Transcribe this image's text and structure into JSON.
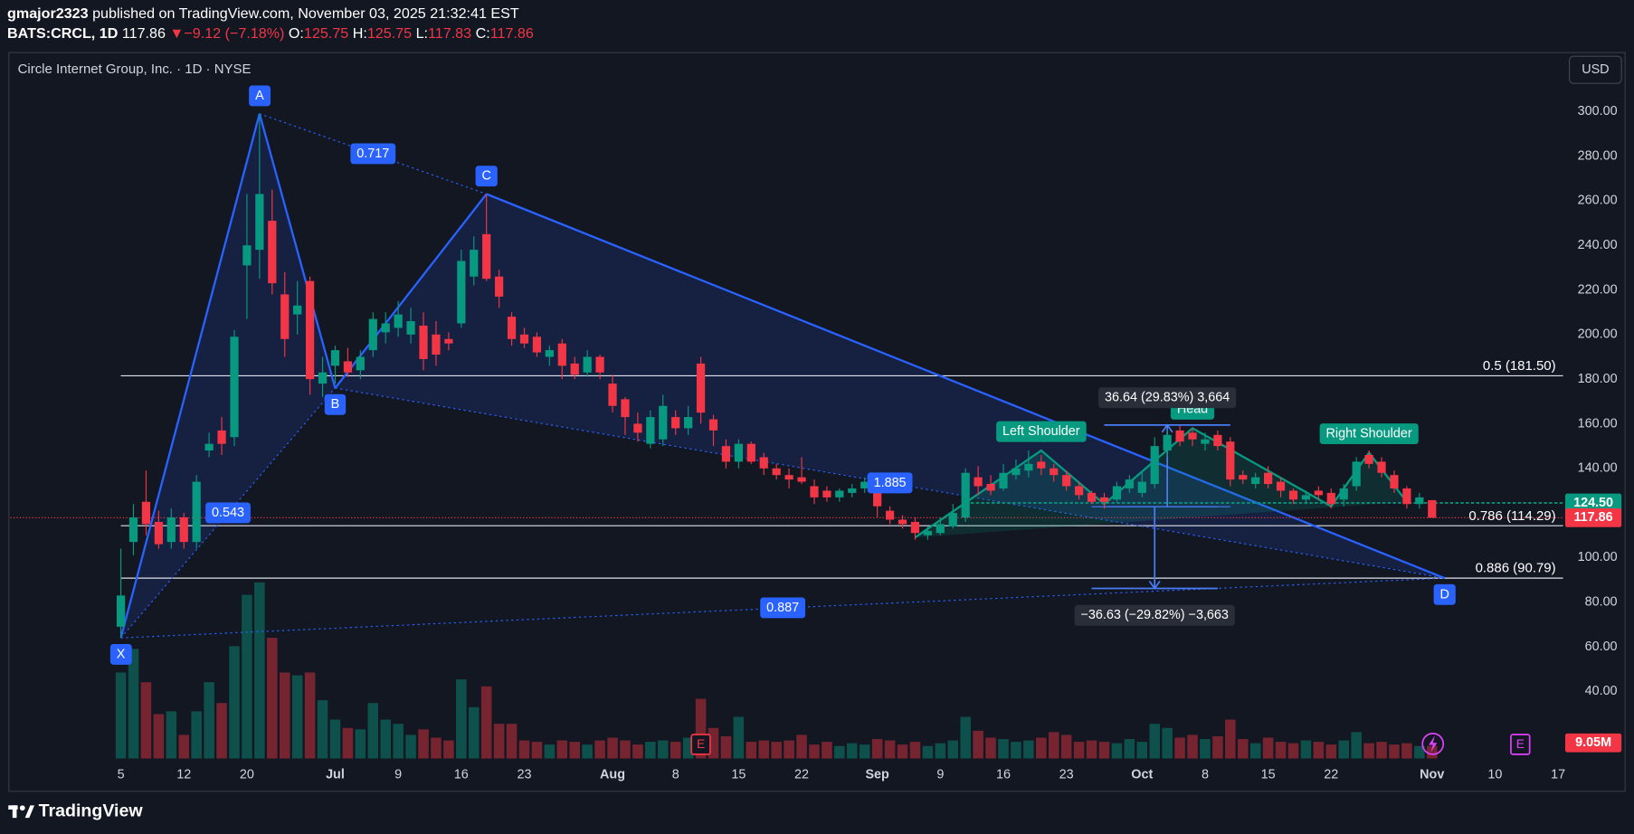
{
  "header": {
    "author": "gmajor2323",
    "published": "published on TradingView.com, November 03, 2025 21:32:41 EST",
    "symbol": "BATS:CRCL, 1D",
    "arrow": "▼",
    "change": "−9.12 (−7.18%)",
    "o": "O:",
    "h": "H:",
    "l": "L:",
    "c": "C:"
  },
  "footer": {
    "brand": "TradingView"
  },
  "chart_data": {
    "type": "candlestick",
    "title": "Circle Internet Group, Inc. · 1D · NYSE",
    "currency": "USD",
    "up_color": "#089981",
    "down_color": "#f23645",
    "xlim": [
      -8.76,
      114.4
    ],
    "xticks": [
      {
        "value": 0,
        "label": "5"
      },
      {
        "value": 5,
        "label": "12"
      },
      {
        "value": 10,
        "label": "20"
      },
      {
        "value": 17,
        "label": "Jul"
      },
      {
        "value": 22,
        "label": "9"
      },
      {
        "value": 27,
        "label": "16"
      },
      {
        "value": 32,
        "label": "23"
      },
      {
        "value": 39,
        "label": "Aug"
      },
      {
        "value": 44,
        "label": "8"
      },
      {
        "value": 49,
        "label": "15"
      },
      {
        "value": 54,
        "label": "22"
      },
      {
        "value": 60,
        "label": "Sep"
      },
      {
        "value": 65,
        "label": "9"
      },
      {
        "value": 70,
        "label": "16"
      },
      {
        "value": 75,
        "label": "23"
      },
      {
        "value": 81,
        "label": "Oct"
      },
      {
        "value": 86,
        "label": "8"
      },
      {
        "value": 91,
        "label": "15"
      },
      {
        "value": 96,
        "label": "22"
      },
      {
        "value": 104,
        "label": "Nov"
      },
      {
        "value": 109,
        "label": "10"
      },
      {
        "value": 114,
        "label": "17"
      }
    ],
    "ylim": [
      9.0,
      325.7
    ],
    "yticks": [
      {
        "value": 40,
        "label": "40.00"
      },
      {
        "value": 60,
        "label": "60.00"
      },
      {
        "value": 80,
        "label": "80.00"
      },
      {
        "value": 100,
        "label": "100.00"
      },
      {
        "value": 120,
        "label": "120.00"
      },
      {
        "value": 140,
        "label": "140.00"
      },
      {
        "value": 160,
        "label": "160.00"
      },
      {
        "value": 180,
        "label": "180.00"
      },
      {
        "value": 200,
        "label": "200.00"
      },
      {
        "value": 220,
        "label": "220.00"
      },
      {
        "value": 240,
        "label": "240.00"
      },
      {
        "value": 260,
        "label": "260.00"
      },
      {
        "value": 280,
        "label": "280.00"
      },
      {
        "value": 300,
        "label": "300.00"
      }
    ],
    "grid": false,
    "open": [
      69,
      107,
      125,
      116,
      107,
      118,
      107,
      148,
      157,
      154,
      231,
      238,
      251,
      218,
      209,
      224,
      178,
      186,
      188,
      184,
      193,
      201,
      203,
      200,
      204,
      200,
      198,
      205,
      226,
      245,
      226,
      208,
      200,
      199,
      190,
      196,
      187,
      183,
      190,
      178,
      171,
      160,
      151,
      153,
      163,
      158,
      187,
      162,
      150,
      143,
      151,
      145,
      140,
      137,
      136,
      132,
      130,
      127,
      129,
      131,
      132,
      121,
      117,
      116,
      110,
      111,
      114,
      118,
      136,
      133,
      131,
      137,
      139,
      143,
      140,
      137,
      132,
      129,
      127,
      126,
      131,
      129,
      133,
      148,
      157,
      156,
      151,
      155,
      152,
      137,
      133,
      138,
      134,
      130,
      126,
      130,
      129,
      126,
      132,
      146,
      143,
      137,
      131,
      124,
      125.75
    ],
    "high": [
      104,
      124,
      139,
      121,
      122,
      120,
      137,
      156,
      163,
      202,
      263,
      299,
      265,
      228,
      224,
      226,
      190,
      195,
      194,
      193,
      210,
      210,
      215,
      212,
      210,
      206,
      201,
      238,
      244,
      263,
      229,
      210,
      203,
      201,
      195,
      198,
      190,
      193,
      191,
      182,
      172,
      165,
      166,
      173,
      166,
      168,
      190,
      164,
      153,
      153,
      152,
      147,
      142,
      140,
      145,
      135,
      132,
      131,
      133,
      136,
      134,
      123,
      119,
      118,
      114,
      118,
      124,
      140,
      141,
      137,
      142,
      144,
      148,
      146,
      142,
      139,
      134,
      130,
      129,
      134,
      137,
      139,
      154,
      158,
      159,
      158,
      156,
      157,
      154,
      139,
      138,
      141,
      136,
      131,
      130,
      132,
      131,
      133,
      145,
      148,
      145,
      139,
      132,
      129,
      125.75
    ],
    "low": [
      64,
      101,
      110,
      104,
      104,
      104,
      104,
      145,
      146,
      150,
      207,
      225,
      218,
      190,
      200,
      173,
      172,
      178,
      181,
      180,
      190,
      196,
      199,
      196,
      184,
      186,
      193,
      203,
      222,
      224,
      212,
      195,
      194,
      190,
      186,
      180,
      180,
      181,
      180,
      165,
      155,
      152,
      149,
      150,
      155,
      155,
      160,
      150,
      140,
      140,
      142,
      137,
      135,
      131,
      133,
      124,
      125,
      125,
      127,
      129,
      118,
      115,
      113,
      108,
      108,
      110,
      113,
      116,
      128,
      128,
      130,
      135,
      136,
      137,
      134,
      130,
      126,
      124,
      122,
      125,
      129,
      127,
      131,
      145,
      150,
      150,
      148,
      148,
      132,
      133,
      131,
      131,
      127,
      124,
      124,
      126,
      122,
      123,
      130,
      140,
      136,
      129,
      122,
      122,
      117.83
    ],
    "close": [
      83,
      118,
      115,
      106,
      118,
      107,
      134,
      151,
      151,
      199,
      240,
      263,
      223,
      198,
      213,
      180,
      183,
      193,
      183,
      190,
      207,
      205,
      209,
      206,
      189,
      191,
      196,
      233,
      238,
      225,
      217,
      198,
      196,
      192,
      193,
      186,
      182,
      190,
      183,
      168,
      163,
      156,
      163,
      168,
      158,
      163,
      165,
      157,
      143,
      151,
      143,
      140,
      137,
      135,
      134,
      127,
      127,
      130,
      131,
      134,
      123,
      117,
      115,
      111,
      112,
      115,
      120,
      138,
      132,
      130,
      138,
      140,
      142,
      140,
      137,
      132,
      128,
      125,
      125,
      132,
      135,
      134,
      150,
      155,
      152,
      153,
      153,
      150,
      135,
      135,
      136,
      133,
      130,
      126,
      128,
      128,
      124,
      131,
      143,
      142,
      138,
      131,
      124,
      126.98,
      117.86
    ],
    "volume": [
      62,
      79,
      55,
      32,
      34,
      17,
      34,
      55,
      40,
      81,
      118,
      127,
      87,
      62,
      60,
      62,
      42,
      28,
      22,
      21,
      40,
      28,
      25,
      17,
      21,
      15,
      13,
      57,
      37,
      52,
      25,
      25,
      13,
      12,
      10,
      13,
      12,
      10,
      13,
      15,
      13,
      10,
      12,
      13,
      12,
      15,
      43,
      22,
      16,
      30,
      12,
      13,
      12,
      13,
      17,
      10,
      12,
      9,
      11,
      10,
      14,
      13,
      10,
      12,
      9,
      11,
      13,
      30,
      20,
      15,
      14,
      12,
      13,
      15,
      19,
      17,
      12,
      13,
      12,
      11,
      14,
      12,
      25,
      22,
      15,
      17,
      14,
      16,
      28,
      14,
      11,
      15,
      12,
      11,
      13,
      12,
      10,
      13,
      19,
      11,
      12,
      10,
      11,
      9,
      9.05
    ],
    "last_volume_label": "9.05M",
    "harmonic": {
      "color": "#2962ff",
      "points": [
        {
          "label": "X",
          "x": 0,
          "y": 64
        },
        {
          "label": "A",
          "x": 11,
          "y": 299
        },
        {
          "label": "B",
          "x": 17,
          "y": 176
        },
        {
          "label": "C",
          "x": 29,
          "y": 263
        },
        {
          "label": "D",
          "x": 105,
          "y": 90.79
        }
      ],
      "ratios": [
        "0.543",
        "0.717",
        "1.885",
        "0.887"
      ]
    },
    "fib_levels": [
      {
        "value": 181.5,
        "label": "0.5 (181.50)"
      },
      {
        "value": 114.29,
        "label": "0.786 (114.29)"
      },
      {
        "value": 90.79,
        "label": "0.886 (90.79)"
      }
    ],
    "head_and_shoulders": {
      "color": "#089981",
      "x": [
        63,
        73,
        78,
        85,
        96,
        99,
        102
      ],
      "y": [
        109,
        148,
        124,
        158,
        123,
        147,
        125
      ],
      "labels": [
        "Left Shoulder",
        "Head",
        "Right Shoulder"
      ]
    },
    "neckline": {
      "value": 124.5,
      "label": "124.50",
      "from_x": 67
    },
    "measures": [
      {
        "x": 83,
        "from": 122.8,
        "to": 159.44,
        "label": "36.64 (29.83%) 3,664"
      },
      {
        "x": 82,
        "from": 122.8,
        "to": 86.17,
        "label": "−36.63 (−29.82%) −3,663"
      }
    ],
    "earnings": [
      {
        "x": 46,
        "label": "E",
        "color": "#f23645"
      },
      {
        "x": 111,
        "label": "E",
        "color": "#e040fb"
      }
    ]
  }
}
